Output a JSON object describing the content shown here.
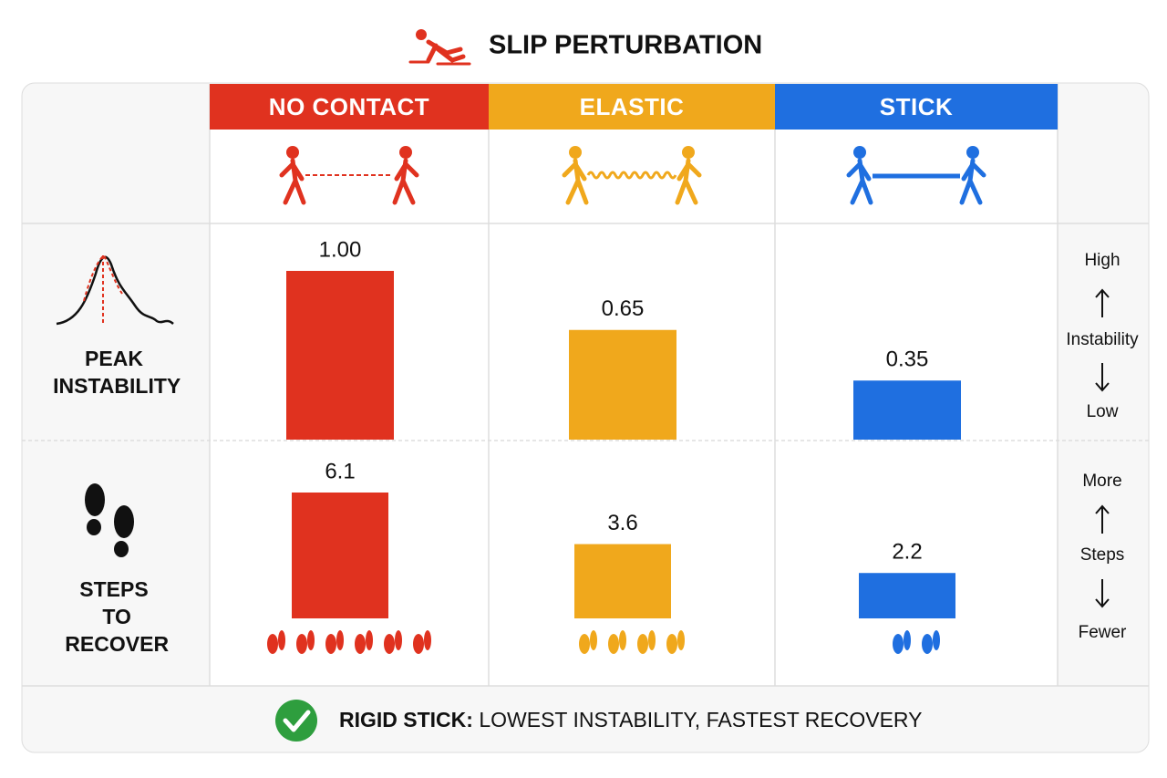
{
  "title": "SLIP PERTURBATION",
  "columns": [
    {
      "name": "NO CONTACT",
      "color": "#e0321f"
    },
    {
      "name": "ELASTIC",
      "color": "#f0a81c"
    },
    {
      "name": "STICK",
      "color": "#1f6fe0"
    }
  ],
  "rows": [
    {
      "label": "PEAK INSTABILITY",
      "values": [
        1.0,
        0.65,
        0.35
      ],
      "value_labels": [
        "1.00",
        "0.65",
        "0.35"
      ],
      "scale": {
        "high": "High",
        "middle": "Instability",
        "low": "Low"
      }
    },
    {
      "label": "STEPS TO RECOVER",
      "values": [
        6.1,
        3.6,
        2.2
      ],
      "scale": {
        "high": "More",
        "middle": "Steps",
        "low": "Fewer"
      }
    }
  ],
  "footer": {
    "bold": "RIGID STICK:",
    "text": "LOWEST INSTABILITY, FASTEST RECOVERY"
  }
}
